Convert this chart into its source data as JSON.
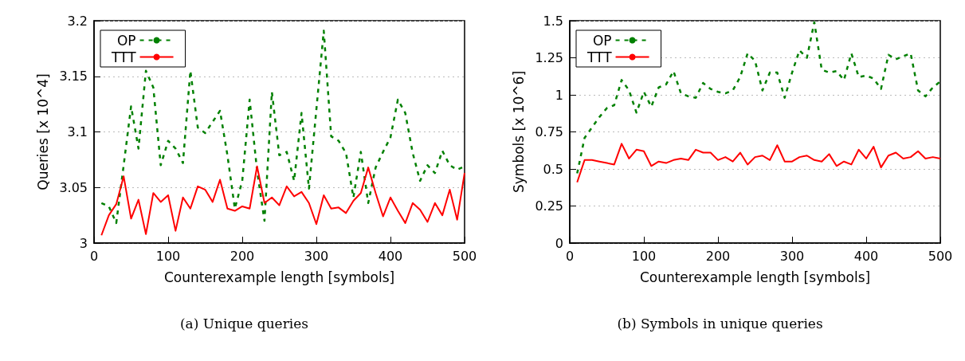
{
  "chart_data": [
    {
      "type": "line",
      "title": "(a) Unique queries",
      "xlabel": "Counterexample length [symbols]",
      "ylabel": "Queries [x 10^4]",
      "x": [
        10,
        20,
        30,
        40,
        50,
        60,
        70,
        80,
        90,
        100,
        110,
        120,
        130,
        140,
        150,
        160,
        170,
        180,
        190,
        200,
        210,
        220,
        230,
        240,
        250,
        260,
        270,
        280,
        290,
        300,
        310,
        320,
        330,
        340,
        350,
        360,
        370,
        380,
        390,
        400,
        410,
        420,
        430,
        440,
        450,
        460,
        470,
        480,
        490,
        500
      ],
      "series": [
        {
          "name": "OP",
          "color": "#008000",
          "line_style": "dashed",
          "values": [
            3.036,
            3.033,
            3.018,
            3.07,
            3.123,
            3.085,
            3.155,
            3.14,
            3.07,
            3.092,
            3.085,
            3.072,
            3.155,
            3.104,
            3.099,
            3.109,
            3.119,
            3.079,
            3.031,
            3.056,
            3.129,
            3.065,
            3.02,
            3.136,
            3.079,
            3.082,
            3.056,
            3.117,
            3.049,
            3.12,
            3.191,
            3.096,
            3.092,
            3.081,
            3.041,
            3.082,
            3.036,
            3.068,
            3.082,
            3.095,
            3.129,
            3.117,
            3.081,
            3.056,
            3.07,
            3.063,
            3.083,
            3.07,
            3.066,
            3.069
          ]
        },
        {
          "name": "TTT",
          "color": "#ff0000",
          "line_style": "solid",
          "values": [
            3.007,
            3.025,
            3.035,
            3.06,
            3.022,
            3.039,
            3.008,
            3.045,
            3.037,
            3.043,
            3.011,
            3.041,
            3.031,
            3.051,
            3.048,
            3.037,
            3.057,
            3.031,
            3.029,
            3.033,
            3.031,
            3.069,
            3.036,
            3.041,
            3.034,
            3.051,
            3.042,
            3.046,
            3.036,
            3.017,
            3.043,
            3.031,
            3.032,
            3.027,
            3.038,
            3.045,
            3.068,
            3.045,
            3.024,
            3.041,
            3.029,
            3.018,
            3.036,
            3.03,
            3.019,
            3.036,
            3.025,
            3.048,
            3.021,
            3.063
          ]
        }
      ],
      "xlim": [
        0,
        500
      ],
      "xticks": [
        0,
        100,
        200,
        300,
        400,
        500
      ],
      "ylim": [
        3,
        3.2
      ],
      "yticks": [
        3,
        3.05,
        3.1,
        3.15,
        3.2
      ],
      "grid": "y",
      "legend": "top left",
      "marker": "none"
    },
    {
      "type": "line",
      "title": "(b) Symbols in unique queries",
      "xlabel": "Counterexample length [symbols]",
      "ylabel": "Symbols [x 10^6]",
      "x": [
        10,
        20,
        30,
        40,
        50,
        60,
        70,
        80,
        90,
        100,
        110,
        120,
        130,
        140,
        150,
        160,
        170,
        180,
        190,
        200,
        210,
        220,
        230,
        240,
        250,
        260,
        270,
        280,
        290,
        300,
        310,
        320,
        330,
        340,
        350,
        360,
        370,
        380,
        390,
        400,
        410,
        420,
        430,
        440,
        450,
        460,
        470,
        480,
        490,
        500
      ],
      "series": [
        {
          "name": "OP",
          "color": "#008000",
          "line_style": "dashed",
          "values": [
            0.47,
            0.71,
            0.78,
            0.85,
            0.91,
            0.93,
            1.1,
            1.03,
            0.88,
            1.02,
            0.92,
            1.05,
            1.07,
            1.16,
            1.01,
            0.99,
            0.98,
            1.08,
            1.04,
            1.02,
            1.01,
            1.03,
            1.12,
            1.28,
            1.23,
            1.03,
            1.15,
            1.15,
            0.98,
            1.15,
            1.3,
            1.25,
            1.49,
            1.17,
            1.15,
            1.16,
            1.1,
            1.28,
            1.12,
            1.13,
            1.11,
            1.04,
            1.27,
            1.24,
            1.26,
            1.28,
            1.03,
            0.99,
            1.05,
            1.09
          ]
        },
        {
          "name": "TTT",
          "color": "#ff0000",
          "line_style": "solid",
          "values": [
            0.41,
            0.56,
            0.56,
            0.55,
            0.54,
            0.53,
            0.67,
            0.57,
            0.63,
            0.62,
            0.52,
            0.55,
            0.54,
            0.56,
            0.57,
            0.56,
            0.63,
            0.61,
            0.61,
            0.56,
            0.58,
            0.55,
            0.61,
            0.53,
            0.58,
            0.59,
            0.56,
            0.66,
            0.55,
            0.55,
            0.58,
            0.59,
            0.56,
            0.55,
            0.6,
            0.52,
            0.55,
            0.53,
            0.63,
            0.57,
            0.65,
            0.51,
            0.59,
            0.61,
            0.57,
            0.58,
            0.62,
            0.57,
            0.58,
            0.57
          ]
        }
      ],
      "xlim": [
        0,
        500
      ],
      "xticks": [
        0,
        100,
        200,
        300,
        400,
        500
      ],
      "ylim": [
        0,
        1.5
      ],
      "yticks": [
        0,
        0.25,
        0.5,
        0.75,
        1,
        1.25,
        1.5
      ],
      "grid": "y",
      "legend": "top left",
      "marker": "none"
    }
  ]
}
